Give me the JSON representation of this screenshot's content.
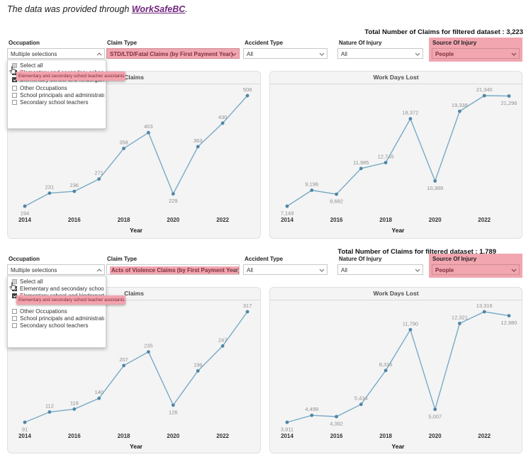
{
  "intro": {
    "prefix": "The data was provided through ",
    "link": "WorkSafeBC",
    "suffix": "."
  },
  "colors": {
    "highlight_pink": "#f1a6b0",
    "highlight_text": "#7e2f3c",
    "chart_line": "#78aac6",
    "chart_marker": "#4e86a6",
    "value_label": "#8f8f8f",
    "axis_label": "#333333",
    "link_purple": "#70267e"
  },
  "sections": [
    {
      "total": "Total Number of Claims for filtered dataset : 3,223",
      "filters": {
        "occupation": {
          "label": "Occupation",
          "value": "Multiple selections"
        },
        "claim_type": {
          "label": "Claim Type",
          "value": "STD/LTD/Fatal Claims (by First Payment Year)"
        },
        "accident_type": {
          "label": "Accident Type",
          "value": "All"
        },
        "nature_of_injury": {
          "label": "Nature Of Injury",
          "value": "All"
        },
        "source_of_injury": {
          "label": "Source Of Injury",
          "value": "People"
        }
      },
      "occupation_list": {
        "select_all": "Select all",
        "items": [
          {
            "label": "Elementary and secondary school te..",
            "checked": true
          },
          {
            "label": "Elementary school and kindergarten",
            "checked": true
          },
          {
            "label": "Other Occupations",
            "checked": false
          },
          {
            "label": "School principals and administrators..",
            "checked": false
          },
          {
            "label": "Secondary school teachers",
            "checked": false
          }
        ],
        "tooltip": "Elementary and secondary school teacher assistants"
      }
    },
    {
      "total": "Total Number of Claims for filtered dataset : 1,789",
      "filters": {
        "occupation": {
          "label": "Occupation",
          "value": "Multiple selections"
        },
        "claim_type": {
          "label": "Claim Type",
          "value": "Acts of Violence Claims (by First Payment Year)"
        },
        "accident_type": {
          "label": "Accident Type",
          "value": "All"
        },
        "nature_of_injury": {
          "label": "Nature Of Injury",
          "value": "All"
        },
        "source_of_injury": {
          "label": "Source Of Injury",
          "value": "People"
        }
      },
      "occupation_list": {
        "select_all": "Select all",
        "items": [
          {
            "label": "Elementary and secondary school te..",
            "checked": true
          },
          {
            "label": "Elementary school and kindergarten",
            "checked": true
          },
          {
            "label": "Other Occupations",
            "checked": false
          },
          {
            "label": "School principals and administrators..",
            "checked": false
          },
          {
            "label": "Secondary school teachers",
            "checked": false
          }
        ],
        "tooltip": "Elementary and secondary school teacher assistants"
      }
    }
  ],
  "chart_data": [
    {
      "type": "line",
      "title": "Claims",
      "xlabel": "Year",
      "x": [
        2014,
        2015,
        2016,
        2017,
        2018,
        2019,
        2020,
        2021,
        2022,
        2023
      ],
      "values": [
        194,
        231,
        236,
        271,
        358,
        403,
        229,
        363,
        430,
        508
      ],
      "labels": [
        "194",
        "231",
        "236",
        "271",
        "358",
        "403",
        "229",
        "363",
        "430",
        "508"
      ],
      "x_tick_labels": [
        "2014",
        "2016",
        "2018",
        "2020",
        "2022"
      ],
      "x_tick_indices": [
        0,
        2,
        4,
        6,
        8
      ],
      "grid": false,
      "legend": false
    },
    {
      "type": "line",
      "title": "Work Days Lost",
      "xlabel": "Year",
      "x": [
        2014,
        2015,
        2016,
        2017,
        2018,
        2019,
        2020,
        2021,
        2022,
        2023
      ],
      "values": [
        7149,
        9196,
        8682,
        11985,
        12745,
        18372,
        10389,
        19338,
        21340,
        21296
      ],
      "labels": [
        "7,149",
        "9,196",
        "8,682",
        "11,985",
        "12,745",
        "18,372",
        "10,389",
        "19,338",
        "21,340",
        "21,296"
      ],
      "x_tick_labels": [
        "2014",
        "2016",
        "2018",
        "2020",
        "2022"
      ],
      "x_tick_indices": [
        0,
        2,
        4,
        6,
        8
      ],
      "grid": false,
      "legend": false
    },
    {
      "type": "line",
      "title": "Claims",
      "xlabel": "Year",
      "x": [
        2014,
        2015,
        2016,
        2017,
        2018,
        2019,
        2020,
        2021,
        2022,
        2023
      ],
      "values": [
        91,
        112,
        118,
        140,
        207,
        235,
        126,
        196,
        247,
        317
      ],
      "labels": [
        "91",
        "112",
        "118",
        "140",
        "207",
        "235",
        "126",
        "196",
        "247",
        "317"
      ],
      "x_tick_labels": [
        "2014",
        "2016",
        "2018",
        "2020",
        "2022"
      ],
      "x_tick_indices": [
        0,
        2,
        4,
        6,
        8
      ],
      "grid": false,
      "legend": false
    },
    {
      "type": "line",
      "title": "Work Days Lost",
      "xlabel": "Year",
      "x": [
        2014,
        2015,
        2016,
        2017,
        2018,
        2019,
        2020,
        2021,
        2022,
        2023
      ],
      "values": [
        3911,
        4499,
        4392,
        5434,
        8316,
        11790,
        5007,
        12321,
        13316,
        12980
      ],
      "labels": [
        "3,911",
        "4,499",
        "4,392",
        "5,434",
        "8,316",
        "11,790",
        "5,007",
        "12,321",
        "13,316",
        "12,980"
      ],
      "x_tick_labels": [
        "2014",
        "2016",
        "2018",
        "2020",
        "2022"
      ],
      "x_tick_indices": [
        0,
        2,
        4,
        6,
        8
      ],
      "grid": false,
      "legend": false
    }
  ]
}
